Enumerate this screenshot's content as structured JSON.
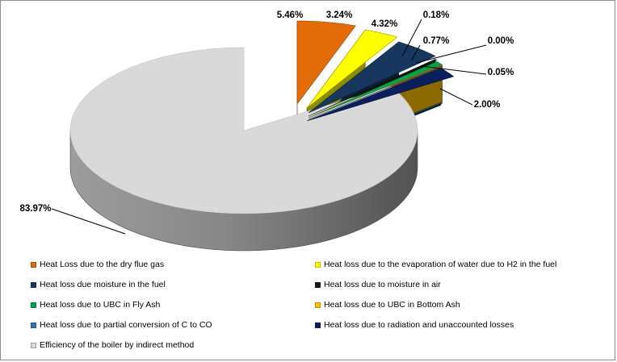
{
  "chart_data": {
    "type": "pie",
    "style": "3d-exploded",
    "title": "",
    "slices": [
      {
        "label": "Heat Loss due to the dry flue gas",
        "value": 5.46,
        "display": "5.46%",
        "color": "#E36C09"
      },
      {
        "label": "Heat loss due to the evaporation of water due to H2 in the fuel",
        "value": 3.24,
        "display": "3.24%",
        "color": "#FFFF00"
      },
      {
        "label": "Heat loss due moisture in the fuel",
        "value": 4.32,
        "display": "4.32%",
        "color": "#17375E"
      },
      {
        "label": "Heat loss due to moisture in air",
        "value": 0.18,
        "display": "0.18%",
        "color": "#0F1F10"
      },
      {
        "label": "Heat loss due to UBC in Fly Ash",
        "value": 0.77,
        "display": "0.77%",
        "color": "#00A550"
      },
      {
        "label": "Heat loss due to UBC in Bottom Ash",
        "value": 0.0,
        "display": "0.00%",
        "color": "#FFC000"
      },
      {
        "label": "Heat loss due to partial conversion of C to CO",
        "value": 0.05,
        "display": "0.05%",
        "color": "#2E75B6"
      },
      {
        "label": "Heat loss due to radiation and unaccounted losses",
        "value": 2.0,
        "display": "2.00%",
        "color": "#0B1F5C"
      },
      {
        "label": "Efficiency of the boiler by indirect method",
        "value": 83.97,
        "display": "83.97%",
        "color": "#D9D9D9"
      }
    ],
    "legend_position": "bottom"
  }
}
